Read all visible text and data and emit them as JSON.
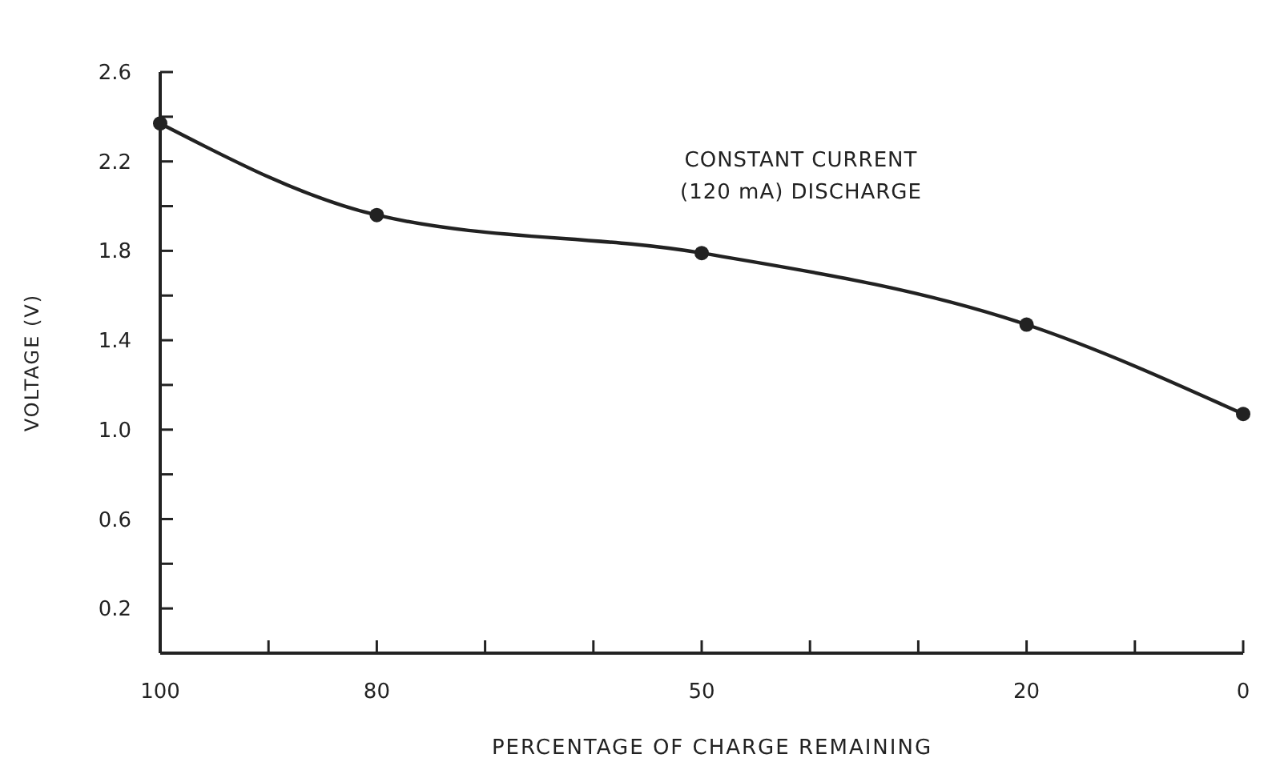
{
  "chart_data": {
    "type": "line",
    "xlabel": "PERCENTAGE OF CHARGE REMAINING",
    "ylabel": "VOLTAGE (V)",
    "x": [
      100,
      80,
      50,
      20,
      0
    ],
    "series": [
      {
        "color": "#222222",
        "values": [
          2.37,
          1.96,
          1.79,
          1.47,
          1.07
        ]
      }
    ],
    "xlim": [
      100,
      0
    ],
    "xticks": [
      100,
      {
        "value": 90,
        "label": null
      },
      80,
      {
        "value": 70,
        "label": null
      },
      {
        "value": 60,
        "label": null
      },
      50,
      {
        "value": 40,
        "label": null
      },
      {
        "value": 30,
        "label": null
      },
      20,
      {
        "value": 10,
        "label": null
      },
      0
    ],
    "ylim": [
      0,
      2.6
    ],
    "yticks": [
      0.2,
      {
        "value": 0.4,
        "label": null
      },
      0.6,
      {
        "value": 0.8,
        "label": null
      },
      {
        "value": 1,
        "label": "1.0"
      },
      {
        "value": 1.2,
        "label": null
      },
      1.4,
      {
        "value": 1.6,
        "label": null
      },
      1.8,
      {
        "value": 2,
        "label": null
      },
      2.2,
      {
        "value": 2.4,
        "label": null
      },
      2.6
    ],
    "marker": "circle",
    "line_style": "solid",
    "grid": false,
    "annotations": [
      "CONSTANT CURRENT\n(120 mA) DISCHARGE"
    ]
  }
}
